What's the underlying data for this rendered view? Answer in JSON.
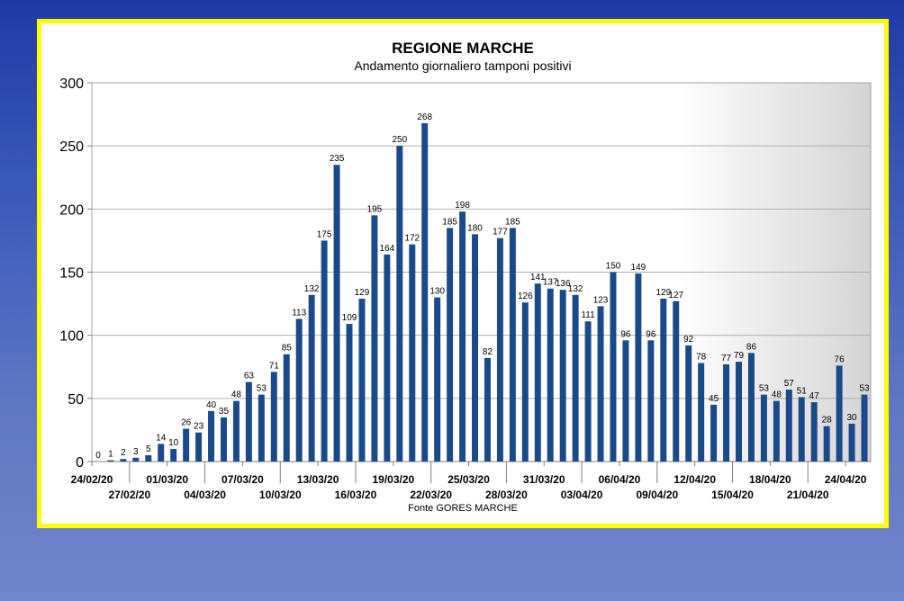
{
  "chart_data": {
    "type": "bar",
    "title": "REGIONE MARCHE",
    "subtitle": "Andamento giornaliero tamponi positivi",
    "source": "Fonte GORES MARCHE",
    "ylim": [
      0,
      300
    ],
    "y_ticks": [
      0,
      50,
      100,
      150,
      200,
      250,
      300
    ],
    "grid": true,
    "bar_color": "#1a4a8a",
    "categories": [
      "24/02/20",
      "25/02/20",
      "26/02/20",
      "27/02/20",
      "28/02/20",
      "29/02/20",
      "01/03/20",
      "02/03/20",
      "03/03/20",
      "04/03/20",
      "05/03/20",
      "06/03/20",
      "07/03/20",
      "08/03/20",
      "09/03/20",
      "10/03/20",
      "11/03/20",
      "12/03/20",
      "13/03/20",
      "14/03/20",
      "15/03/20",
      "16/03/20",
      "17/03/20",
      "18/03/20",
      "19/03/20",
      "20/03/20",
      "21/03/20",
      "22/03/20",
      "23/03/20",
      "24/03/20",
      "25/03/20",
      "26/03/20",
      "27/03/20",
      "28/03/20",
      "29/03/20",
      "30/03/20",
      "31/03/20",
      "01/04/20",
      "02/04/20",
      "03/04/20",
      "04/04/20",
      "05/04/20",
      "06/04/20",
      "07/04/20",
      "08/04/20",
      "09/04/20",
      "10/04/20",
      "11/04/20",
      "12/04/20",
      "13/04/20",
      "14/04/20",
      "15/04/20",
      "16/04/20",
      "17/04/20",
      "18/04/20",
      "19/04/20",
      "20/04/20",
      "21/04/20",
      "22/04/20",
      "23/04/20",
      "24/04/20",
      "25/04/20"
    ],
    "values": [
      0,
      1,
      2,
      3,
      5,
      14,
      10,
      26,
      23,
      40,
      35,
      48,
      63,
      53,
      71,
      85,
      113,
      132,
      175,
      235,
      109,
      129,
      195,
      164,
      250,
      172,
      268,
      130,
      185,
      198,
      180,
      82,
      177,
      185,
      126,
      141,
      137,
      136,
      132,
      111,
      123,
      150,
      96,
      149,
      96,
      129,
      127,
      92,
      78,
      45,
      77,
      79,
      86,
      53,
      48,
      57,
      51,
      47,
      28,
      76,
      30,
      53
    ],
    "x_tick_labels": [
      "24/02/20",
      "27/02/20",
      "01/03/20",
      "04/03/20",
      "07/03/20",
      "10/03/20",
      "13/03/20",
      "16/03/20",
      "19/03/20",
      "22/03/20",
      "25/03/20",
      "28/03/20",
      "31/03/20",
      "03/04/20",
      "06/04/20",
      "09/04/20",
      "12/04/20",
      "15/04/20",
      "18/04/20",
      "21/04/20",
      "24/04/20"
    ]
  }
}
